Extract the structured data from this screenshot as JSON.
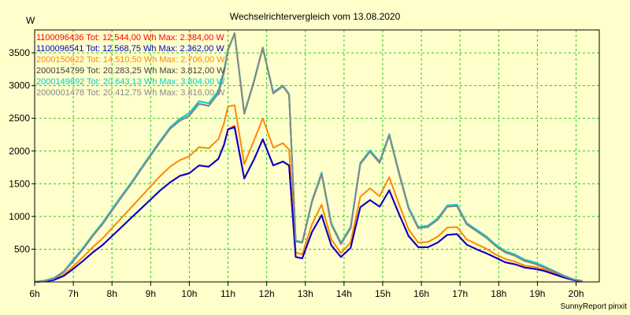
{
  "chart_data": {
    "type": "line",
    "title": "Wechselrichtervergleich vom 13.08.2020",
    "ylabel": "W",
    "footer": "SunnyReport pinxit",
    "xlim": [
      6,
      20.6
    ],
    "ylim": [
      0,
      3850
    ],
    "x_ticks": [
      6,
      7,
      8,
      9,
      10,
      11,
      12,
      13,
      14,
      15,
      16,
      17,
      18,
      19,
      20
    ],
    "x_tick_labels": [
      "6h",
      "7h",
      "8h",
      "9h",
      "10h",
      "11h",
      "12h",
      "13h",
      "14h",
      "15h",
      "16h",
      "17h",
      "18h",
      "19h",
      "20h"
    ],
    "y_ticks": [
      500,
      1000,
      1500,
      2000,
      2500,
      3000,
      3500
    ],
    "y_tick_labels": [
      "500",
      "1000",
      "1500",
      "2000",
      "2500",
      "3000",
      "3500"
    ],
    "grid": true,
    "legend_position": "top-left",
    "x": [
      6.0,
      6.25,
      6.5,
      6.75,
      7.0,
      7.25,
      7.5,
      7.75,
      8.0,
      8.25,
      8.5,
      8.75,
      9.0,
      9.25,
      9.5,
      9.75,
      10.0,
      10.25,
      10.5,
      10.75,
      10.9,
      11.0,
      11.17,
      11.42,
      11.67,
      11.9,
      12.17,
      12.42,
      12.58,
      12.75,
      12.92,
      13.17,
      13.42,
      13.67,
      13.92,
      14.17,
      14.42,
      14.67,
      14.92,
      15.17,
      15.42,
      15.67,
      15.92,
      16.17,
      16.42,
      16.67,
      16.92,
      17.17,
      17.42,
      17.67,
      17.92,
      18.17,
      18.42,
      18.67,
      18.92,
      19.17,
      19.42,
      19.67,
      19.92,
      20.17
    ],
    "series": [
      {
        "name": "1100096436 Tot: 12.544,00 Wh Max: 2.384,00 W",
        "color": "#ff0000",
        "values": [
          0,
          10,
          30,
          90,
          200,
          320,
          450,
          560,
          700,
          840,
          980,
          1120,
          1260,
          1400,
          1520,
          1620,
          1660,
          1780,
          1760,
          1880,
          2100,
          2330,
          2380,
          1580,
          1870,
          2180,
          1780,
          1840,
          1780,
          380,
          360,
          760,
          1020,
          560,
          380,
          520,
          1140,
          1250,
          1150,
          1400,
          1040,
          700,
          530,
          530,
          600,
          720,
          730,
          570,
          500,
          440,
          370,
          300,
          270,
          220,
          200,
          170,
          120,
          70,
          30,
          10
        ]
      },
      {
        "name": "1100096541 Tot: 12.568,75 Wh Max: 2.362,00 W",
        "color": "#0000cc",
        "values": [
          0,
          10,
          30,
          90,
          200,
          320,
          450,
          560,
          700,
          840,
          980,
          1120,
          1260,
          1400,
          1520,
          1620,
          1660,
          1780,
          1760,
          1880,
          2100,
          2330,
          2360,
          1580,
          1870,
          2180,
          1780,
          1840,
          1780,
          380,
          360,
          760,
          1020,
          560,
          380,
          520,
          1140,
          1250,
          1150,
          1400,
          1040,
          700,
          530,
          530,
          600,
          720,
          730,
          570,
          500,
          440,
          370,
          300,
          270,
          220,
          200,
          170,
          120,
          70,
          30,
          10
        ]
      },
      {
        "name": "2000150622 Tot: 14.510,50 Wh Max: 2.706,00 W",
        "color": "#ff8800",
        "values": [
          0,
          12,
          36,
          110,
          240,
          380,
          530,
          660,
          820,
          980,
          1140,
          1300,
          1460,
          1620,
          1760,
          1860,
          1920,
          2060,
          2040,
          2180,
          2430,
          2680,
          2700,
          1800,
          2160,
          2500,
          2050,
          2120,
          2020,
          450,
          420,
          880,
          1180,
          650,
          440,
          600,
          1300,
          1430,
          1310,
          1600,
          1190,
          800,
          600,
          610,
          690,
          830,
          840,
          650,
          580,
          510,
          420,
          350,
          310,
          250,
          230,
          190,
          140,
          80,
          35,
          10
        ]
      },
      {
        "name": "2000154799 Tot: 20.283,25 Wh Max: 3.812,00 W",
        "color": "#404040",
        "values": [
          0,
          15,
          50,
          150,
          320,
          500,
          700,
          880,
          1090,
          1300,
          1500,
          1720,
          1930,
          2140,
          2340,
          2460,
          2540,
          2720,
          2690,
          2880,
          3210,
          3540,
          3800,
          2570,
          3060,
          3580,
          2880,
          2990,
          2860,
          620,
          600,
          1220,
          1650,
          880,
          580,
          820,
          1800,
          1990,
          1820,
          2240,
          1660,
          1120,
          820,
          840,
          950,
          1150,
          1160,
          880,
          780,
          680,
          550,
          450,
          400,
          320,
          280,
          220,
          160,
          90,
          40,
          15
        ]
      },
      {
        "name": "2000149892 Tot: 20.643,13 Wh Max: 3.804,00 W",
        "color": "#00cccc",
        "values": [
          0,
          20,
          60,
          160,
          340,
          520,
          720,
          900,
          1110,
          1320,
          1520,
          1740,
          1950,
          2160,
          2360,
          2490,
          2580,
          2760,
          2730,
          2920,
          3240,
          3560,
          3790,
          2580,
          3080,
          3580,
          2900,
          3000,
          2870,
          630,
          610,
          1240,
          1670,
          900,
          600,
          840,
          1820,
          2010,
          1840,
          2260,
          1680,
          1140,
          840,
          860,
          970,
          1170,
          1180,
          900,
          800,
          700,
          570,
          470,
          420,
          340,
          300,
          240,
          170,
          100,
          45,
          15
        ]
      },
      {
        "name": "2000001478 Tot: 20.412,75 Wh Max: 3.816,00 W",
        "color": "#888888",
        "values": [
          0,
          15,
          50,
          150,
          320,
          500,
          700,
          880,
          1090,
          1300,
          1500,
          1720,
          1930,
          2140,
          2340,
          2460,
          2540,
          2720,
          2690,
          2880,
          3210,
          3540,
          3800,
          2570,
          3060,
          3580,
          2880,
          2990,
          2860,
          620,
          600,
          1220,
          1650,
          880,
          580,
          820,
          1800,
          1990,
          1820,
          2240,
          1660,
          1120,
          820,
          840,
          950,
          1150,
          1160,
          880,
          780,
          680,
          550,
          450,
          400,
          320,
          280,
          220,
          160,
          90,
          40,
          15
        ]
      }
    ]
  }
}
